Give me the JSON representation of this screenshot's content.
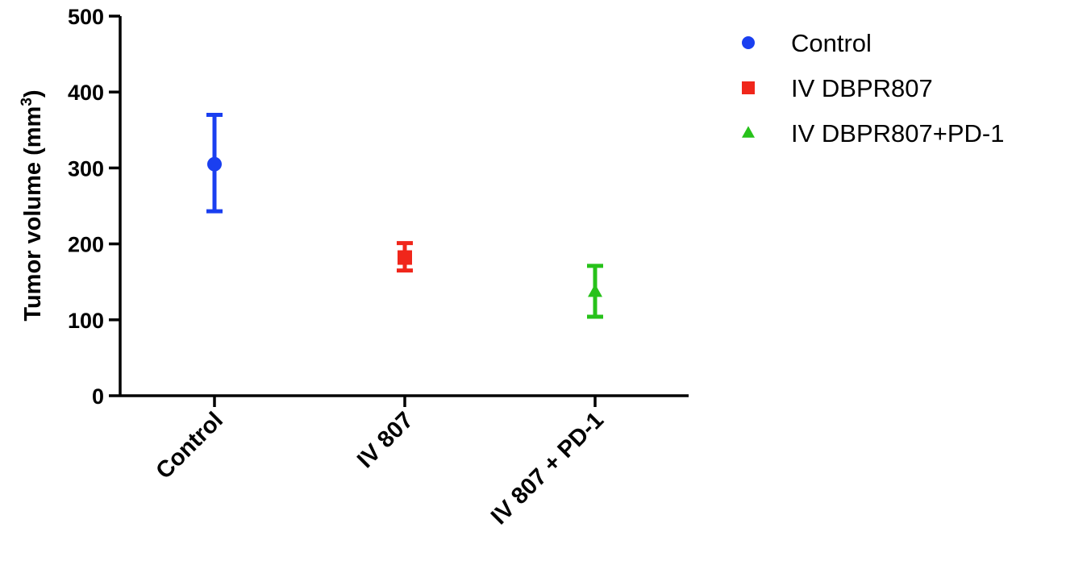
{
  "chart_data": {
    "type": "scatter",
    "categories": [
      "Control",
      "IV 807",
      "IV 807 + PD-1"
    ],
    "ylabel_main": "Tumor volume (mm",
    "ylabel_sup": "3",
    "ylabel_close": ")",
    "ylim": [
      0,
      500
    ],
    "yticks": [
      "0",
      "100",
      "200",
      "300",
      "400",
      "500"
    ],
    "grid": false,
    "legend_position": "top-right",
    "series": [
      {
        "name": "Control",
        "marker": "circle",
        "color": "#1a3ff0",
        "category": "Control",
        "mean": 305,
        "lower": 243,
        "upper": 370
      },
      {
        "name": "IV DBPR807",
        "marker": "square",
        "color": "#f0261b",
        "category": "IV 807",
        "mean": 182,
        "lower": 165,
        "upper": 201
      },
      {
        "name": "IV DBPR807+PD-1",
        "marker": "triangle",
        "color": "#27c21a",
        "category": "IV 807 + PD-1",
        "mean": 137,
        "lower": 104,
        "upper": 171
      }
    ]
  }
}
